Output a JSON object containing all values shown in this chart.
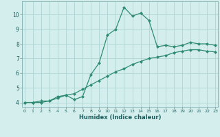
{
  "xlabel": "Humidex (Indice chaleur)",
  "x": [
    0,
    1,
    2,
    3,
    4,
    5,
    6,
    7,
    8,
    9,
    10,
    11,
    12,
    13,
    14,
    15,
    16,
    17,
    18,
    19,
    20,
    21,
    22,
    23
  ],
  "line1_y": [
    4.0,
    4.0,
    4.1,
    4.1,
    4.4,
    4.5,
    4.2,
    4.4,
    5.9,
    6.7,
    8.6,
    9.0,
    10.5,
    9.9,
    10.1,
    9.6,
    7.8,
    7.9,
    7.8,
    7.9,
    8.1,
    8.0,
    8.0,
    7.9
  ],
  "line2_y": [
    4.0,
    4.0,
    4.0,
    4.1,
    4.3,
    4.5,
    4.6,
    4.9,
    5.2,
    5.5,
    5.8,
    6.1,
    6.3,
    6.6,
    6.8,
    7.0,
    7.1,
    7.2,
    7.4,
    7.5,
    7.6,
    7.6,
    7.5,
    7.45
  ],
  "line_color": "#2e8b72",
  "bg_color": "#d4eeed",
  "grid_color": "#aed4d4",
  "ylim": [
    3.7,
    10.9
  ],
  "yticks": [
    4,
    5,
    6,
    7,
    8,
    9,
    10
  ],
  "xticks": [
    0,
    1,
    2,
    3,
    4,
    5,
    6,
    7,
    8,
    9,
    10,
    11,
    12,
    13,
    14,
    15,
    16,
    17,
    18,
    19,
    20,
    21,
    22,
    23
  ],
  "xlim": [
    -0.3,
    23.3
  ]
}
